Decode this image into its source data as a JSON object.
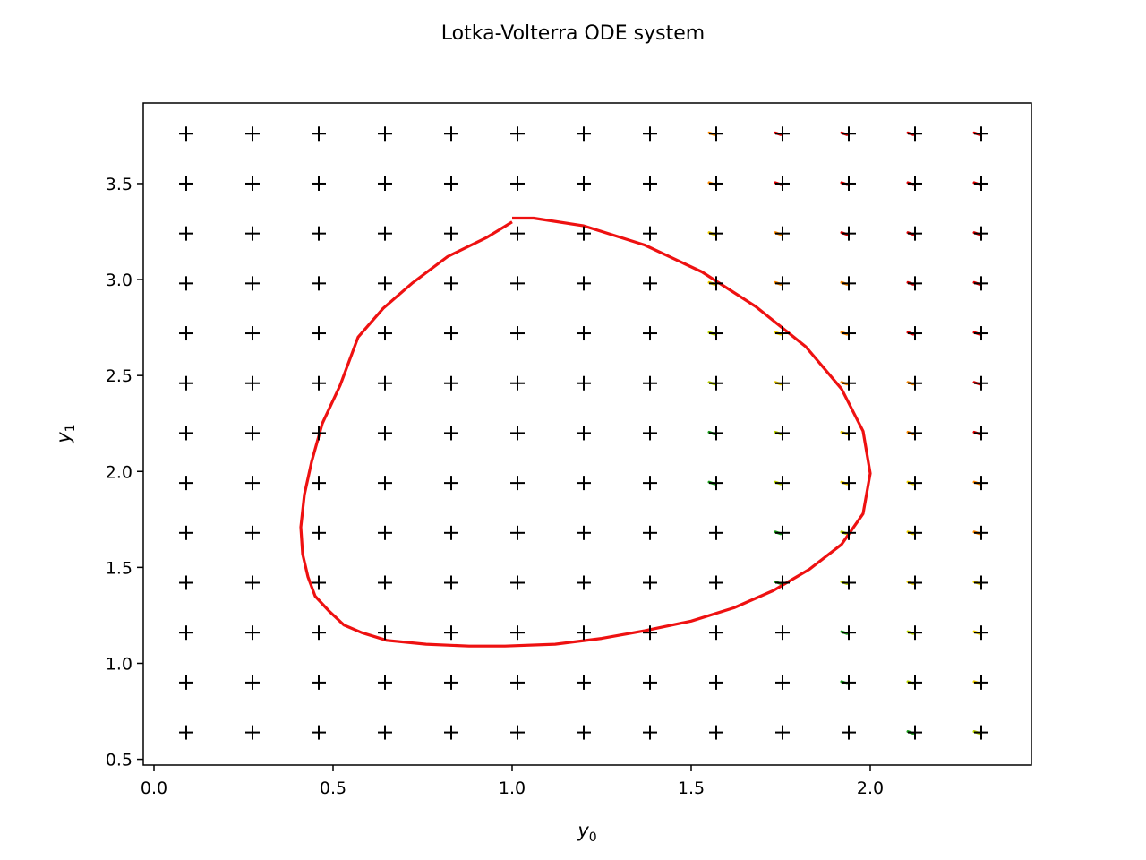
{
  "figure": {
    "title": "Lotka-Volterra ODE system"
  },
  "chart_data": {
    "type": "scatter",
    "title": "Lotka-Volterra ODE system",
    "xlabel": {
      "base": "y",
      "sub": "0"
    },
    "ylabel": {
      "base": "y",
      "sub": "1"
    },
    "xlim": [
      -0.03,
      2.45
    ],
    "ylim": [
      0.47,
      3.92
    ],
    "xticks": [
      0.0,
      0.5,
      1.0,
      1.5,
      2.0
    ],
    "xtick_labels": [
      "0.0",
      "0.5",
      "1.0",
      "1.5",
      "2.0"
    ],
    "yticks": [
      0.5,
      1.0,
      1.5,
      2.0,
      2.5,
      3.0,
      3.5
    ],
    "ytick_labels": [
      "0.5",
      "1.0",
      "1.5",
      "2.0",
      "2.5",
      "3.0",
      "3.5"
    ],
    "grid": false,
    "grid_points": {
      "marker": "+",
      "color": "#000000",
      "x": [
        0.09,
        0.275,
        0.46,
        0.645,
        0.83,
        1.015,
        1.2,
        1.385,
        1.57,
        1.755,
        1.94,
        2.125,
        2.31
      ],
      "y": [
        0.64,
        0.9,
        1.16,
        1.42,
        1.68,
        1.94,
        2.2,
        2.46,
        2.72,
        2.98,
        3.24,
        3.5,
        3.76
      ]
    },
    "trajectory": {
      "color": "#ee1111",
      "x": [
        1.0,
        1.06,
        1.2,
        1.37,
        1.53,
        1.68,
        1.82,
        1.92,
        1.98,
        2.0,
        1.98,
        1.92,
        1.83,
        1.73,
        1.62,
        1.5,
        1.37,
        1.25,
        1.12,
        0.98,
        0.88,
        0.76,
        0.65,
        0.58,
        0.53,
        0.49,
        0.45,
        0.43,
        0.415,
        0.41,
        0.42,
        0.44,
        0.47,
        0.52,
        0.57,
        0.64,
        0.72,
        0.82,
        0.93,
        1.0
      ],
      "y": [
        3.32,
        3.32,
        3.28,
        3.18,
        3.04,
        2.86,
        2.65,
        2.43,
        2.21,
        1.99,
        1.78,
        1.62,
        1.49,
        1.38,
        1.29,
        1.22,
        1.17,
        1.13,
        1.1,
        1.09,
        1.09,
        1.1,
        1.12,
        1.16,
        1.2,
        1.27,
        1.35,
        1.45,
        1.57,
        1.71,
        1.88,
        2.05,
        2.25,
        2.45,
        2.7,
        2.85,
        2.98,
        3.12,
        3.22,
        3.3
      ]
    },
    "arrow_colors": [
      "#1a9e1a",
      "#bcd400",
      "#f0d000",
      "#ff8c00",
      "#e00000"
    ]
  }
}
